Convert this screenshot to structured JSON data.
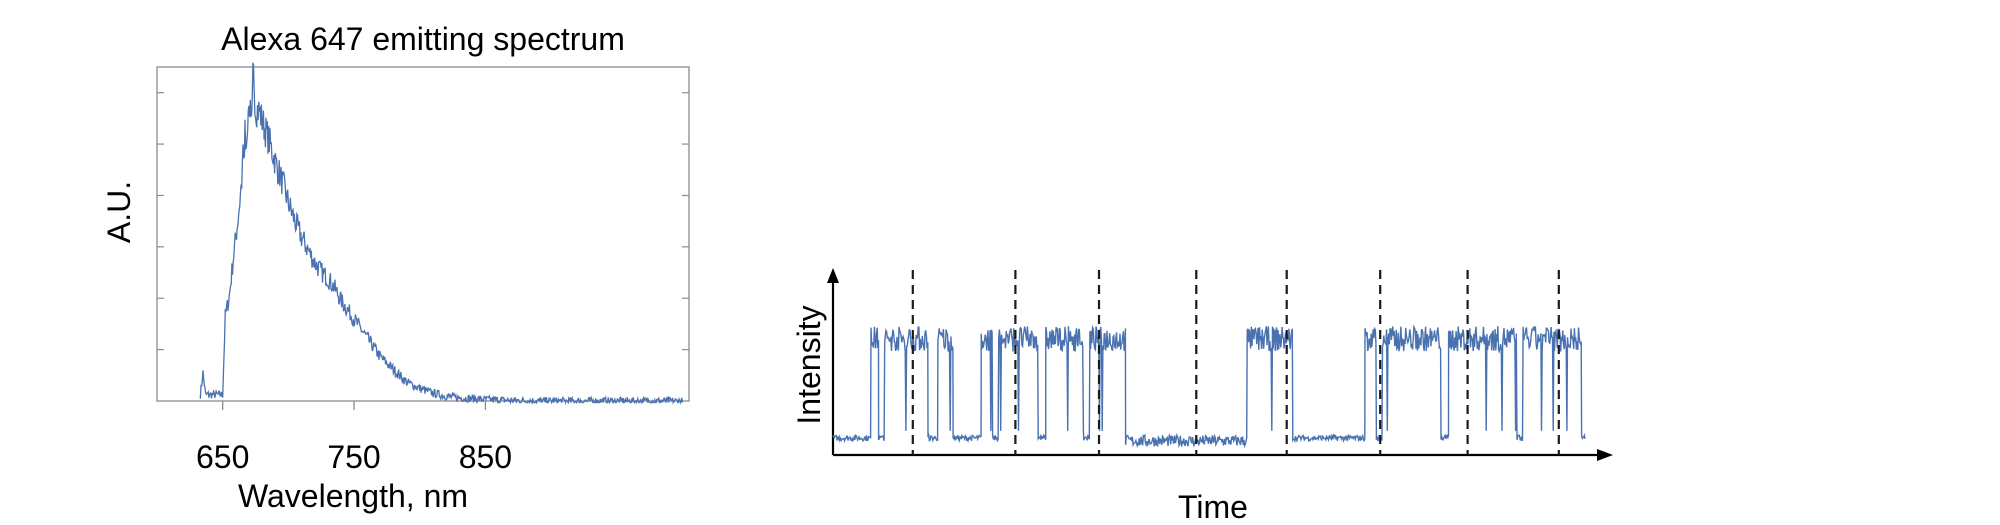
{
  "colors": {
    "trace": "#4a72b0",
    "axis": "#000000",
    "frame": "#8c8c8c",
    "divider": "#1a1a1a"
  },
  "chart_data": [
    {
      "type": "line",
      "title": "Alexa 647 emitting spectrum",
      "xlabel": "Wavelength, nm",
      "ylabel": "A.U.",
      "xticks": [
        650,
        750,
        850
      ],
      "xlim": [
        600,
        1005
      ],
      "ylim": [
        0,
        1.06
      ],
      "grid": false,
      "series": [
        {
          "x": [
            633,
            635,
            637,
            650,
            652,
            655,
            658,
            662,
            665,
            668,
            670,
            672,
            675,
            678,
            680,
            685,
            690,
            695,
            700,
            705,
            710,
            715,
            720,
            725,
            730,
            735,
            740,
            745,
            750,
            755,
            760,
            765,
            770,
            775,
            780,
            785,
            790,
            795,
            800,
            810,
            820,
            830,
            840,
            850,
            860,
            870,
            880,
            900,
            920,
            940,
            960,
            980,
            1000
          ],
          "y": [
            0.02,
            0.09,
            0.02,
            0.02,
            0.27,
            0.33,
            0.45,
            0.59,
            0.72,
            0.83,
            0.9,
            0.95,
            0.93,
            0.92,
            0.89,
            0.83,
            0.76,
            0.7,
            0.63,
            0.57,
            0.52,
            0.48,
            0.44,
            0.41,
            0.39,
            0.36,
            0.32,
            0.29,
            0.26,
            0.23,
            0.2,
            0.17,
            0.14,
            0.12,
            0.1,
            0.08,
            0.06,
            0.05,
            0.04,
            0.025,
            0.015,
            0.01,
            0.008,
            0.005,
            0.003,
            0.002,
            0.001,
            0.0,
            0.0,
            0.0,
            0.0,
            0.0,
            0.0
          ]
        }
      ]
    },
    {
      "type": "line",
      "title": "",
      "xlabel": "Time",
      "ylabel": "Intensity",
      "ylim": [
        0,
        1.2
      ],
      "grid": false,
      "dividers_time": [
        0.105,
        0.24,
        0.35,
        0.478,
        0.597,
        0.72,
        0.835,
        0.955
      ],
      "series": [
        {
          "segments": [
            {
              "t": [
                0.0,
                0.05
              ],
              "state": "off"
            },
            {
              "t": [
                0.05,
                0.06
              ],
              "state": "on"
            },
            {
              "t": [
                0.06,
                0.068
              ],
              "state": "off"
            },
            {
              "t": [
                0.068,
                0.125
              ],
              "state": "on"
            },
            {
              "t": [
                0.125,
                0.138
              ],
              "state": "off"
            },
            {
              "t": [
                0.138,
                0.158
              ],
              "state": "on"
            },
            {
              "t": [
                0.158,
                0.195
              ],
              "state": "off"
            },
            {
              "t": [
                0.195,
                0.21
              ],
              "state": "on"
            },
            {
              "t": [
                0.21,
                0.218
              ],
              "state": "off"
            },
            {
              "t": [
                0.218,
                0.27
              ],
              "state": "on"
            },
            {
              "t": [
                0.27,
                0.28
              ],
              "state": "off"
            },
            {
              "t": [
                0.28,
                0.33
              ],
              "state": "on"
            },
            {
              "t": [
                0.33,
                0.338
              ],
              "state": "off"
            },
            {
              "t": [
                0.338,
                0.385
              ],
              "state": "on"
            },
            {
              "t": [
                0.385,
                0.545
              ],
              "state": "bg"
            },
            {
              "t": [
                0.545,
                0.605
              ],
              "state": "on"
            },
            {
              "t": [
                0.605,
                0.625
              ],
              "state": "off"
            },
            {
              "t": [
                0.625,
                0.7
              ],
              "state": "off"
            },
            {
              "t": [
                0.7,
                0.715
              ],
              "state": "on"
            },
            {
              "t": [
                0.715,
                0.723
              ],
              "state": "off"
            },
            {
              "t": [
                0.723,
                0.8
              ],
              "state": "on"
            },
            {
              "t": [
                0.8,
                0.81
              ],
              "state": "off"
            },
            {
              "t": [
                0.81,
                0.9
              ],
              "state": "on"
            },
            {
              "t": [
                0.9,
                0.908
              ],
              "state": "off"
            },
            {
              "t": [
                0.908,
                0.985
              ],
              "state": "on"
            },
            {
              "t": [
                0.985,
                0.99
              ],
              "state": "off"
            }
          ],
          "levels": {
            "on": 0.82,
            "off": 0.12,
            "bg": 0.1
          }
        }
      ]
    }
  ]
}
